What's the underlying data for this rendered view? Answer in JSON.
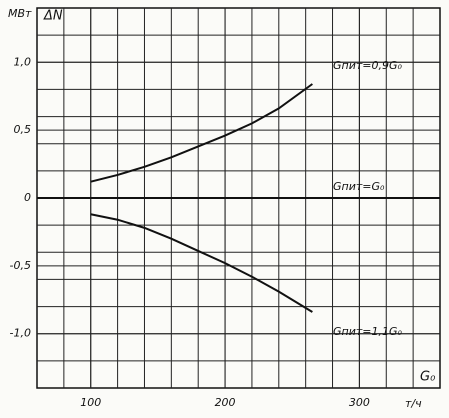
{
  "chart_data": {
    "type": "line",
    "y_unit": "МВт",
    "y_label": "ΔN",
    "x_unit": "т/ч",
    "x_label": "G₀",
    "xlim": [
      60,
      360
    ],
    "ylim": [
      -1.4,
      1.4
    ],
    "xticks": [
      100,
      200,
      300
    ],
    "yticks": [
      {
        "value": 1.0,
        "label": "1,0"
      },
      {
        "value": 0.5,
        "label": "0,5"
      },
      0,
      {
        "value": -0.5,
        "label": "-0,5"
      },
      {
        "value": -1.0,
        "label": "-1,0"
      }
    ],
    "xgrid": [
      80,
      100,
      120,
      140,
      160,
      180,
      200,
      220,
      240,
      260,
      280,
      300,
      320,
      340
    ],
    "ygrid": [
      1.2,
      1.0,
      0.8,
      0.6,
      0.4,
      0.2,
      -0.2,
      -0.4,
      -0.6,
      -0.8,
      -1.0,
      -1.2
    ],
    "color": "#111111",
    "series": [
      {
        "name": "Gпит=0,9G₀",
        "x": [
          100,
          120,
          140,
          160,
          180,
          200,
          220,
          240,
          265
        ],
        "values": [
          0.12,
          0.17,
          0.23,
          0.3,
          0.38,
          0.46,
          0.55,
          0.66,
          0.84
        ]
      },
      {
        "name": "Gпит=G₀",
        "x": [
          60,
          360
        ],
        "values": [
          0,
          0
        ]
      },
      {
        "name": "Gпит=1,1G₀",
        "x": [
          100,
          120,
          140,
          160,
          180,
          200,
          220,
          240,
          265
        ],
        "values": [
          -0.12,
          -0.16,
          -0.22,
          -0.3,
          -0.39,
          -0.48,
          -0.58,
          -0.69,
          -0.84
        ]
      }
    ]
  }
}
